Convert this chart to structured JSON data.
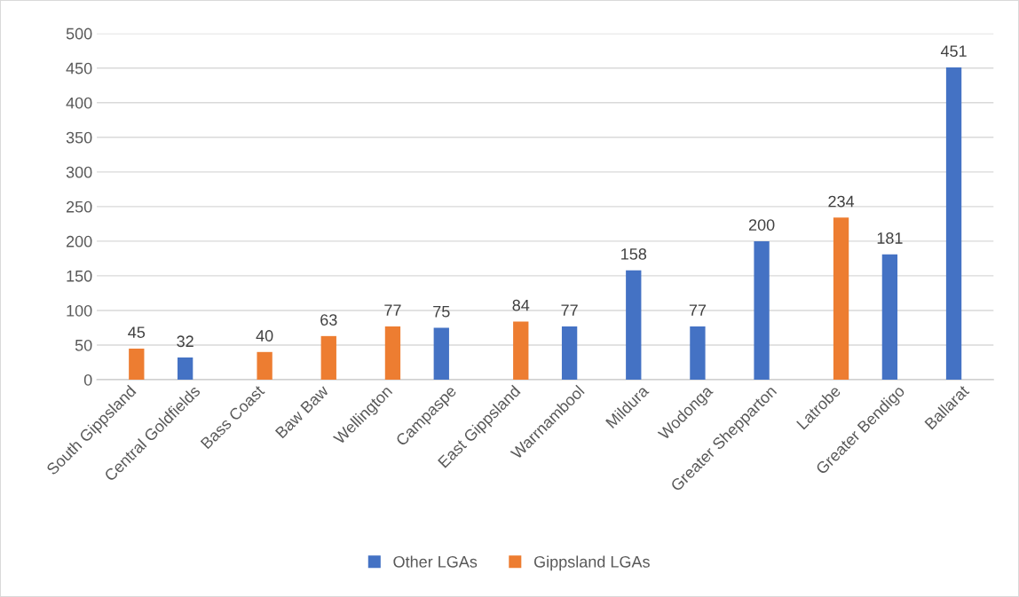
{
  "chart_data": {
    "type": "bar",
    "categories": [
      "South Gippsland",
      "Central Goldfields",
      "Bass Coast",
      "Baw Baw",
      "Wellington",
      "Campaspe",
      "East Gippsland",
      "Warrnambool",
      "Mildura",
      "Wodonga",
      "Greater Shepparton",
      "Latrobe",
      "Greater Bendigo",
      "Ballarat"
    ],
    "series": [
      {
        "name": "Other LGAs",
        "color": "#4472c4",
        "values": [
          null,
          32,
          null,
          null,
          null,
          75,
          null,
          77,
          158,
          77,
          200,
          null,
          181,
          451
        ]
      },
      {
        "name": "Gippsland LGAs",
        "color": "#ed7d31",
        "values": [
          45,
          null,
          40,
          63,
          77,
          null,
          84,
          null,
          null,
          null,
          null,
          234,
          null,
          null
        ]
      }
    ],
    "ylim": [
      0,
      500
    ],
    "yticks": [
      0,
      50,
      100,
      150,
      200,
      250,
      300,
      350,
      400,
      450,
      500
    ],
    "grid": "y",
    "legend": "bottom",
    "data_labels": true
  }
}
